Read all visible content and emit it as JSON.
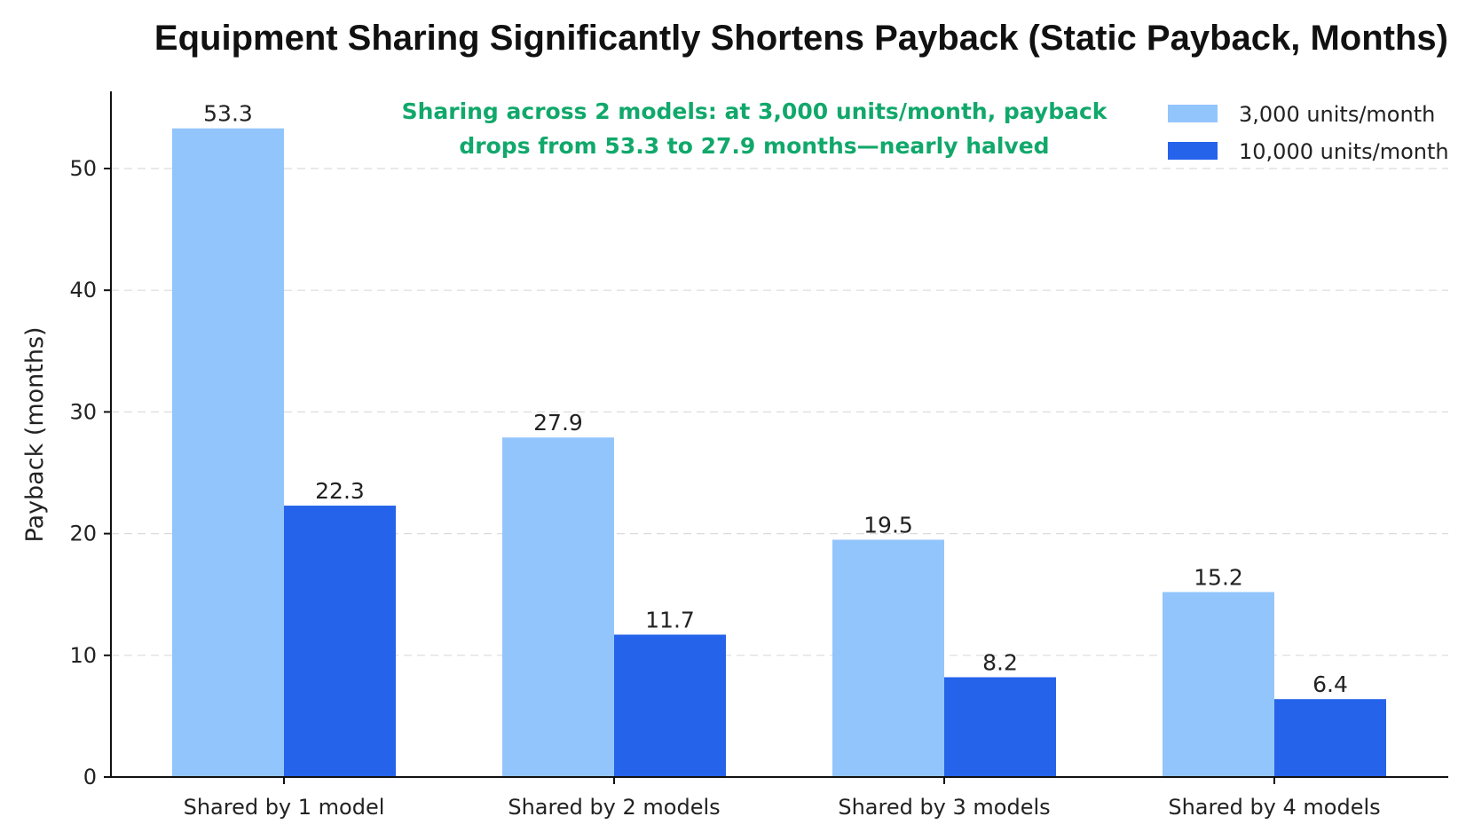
{
  "chart_data": {
    "type": "bar",
    "title": "Equipment Sharing Significantly Shortens Payback (Static Payback, Months)",
    "xlabel": "",
    "ylabel": "Payback (months)",
    "ylim": [
      0,
      56
    ],
    "yticks": [
      0,
      10,
      20,
      30,
      40,
      50
    ],
    "grid": true,
    "legend_position": "top-right",
    "categories": [
      "Shared by 1 model",
      "Shared by 2 models",
      "Shared by 3 models",
      "Shared by 4 models"
    ],
    "series": [
      {
        "name": "3,000 units/month",
        "color": "#93c5fd",
        "values": [
          53.3,
          27.9,
          19.5,
          15.2
        ]
      },
      {
        "name": "10,000 units/month",
        "color": "#2563eb",
        "values": [
          22.3,
          11.7,
          8.2,
          6.4
        ]
      }
    ],
    "annotation": {
      "lines": [
        "Sharing across 2 models: at 3,000 units/month, payback",
        "drops from 53.3 to 27.9 months—nearly halved"
      ],
      "color": "#11a86b"
    }
  }
}
